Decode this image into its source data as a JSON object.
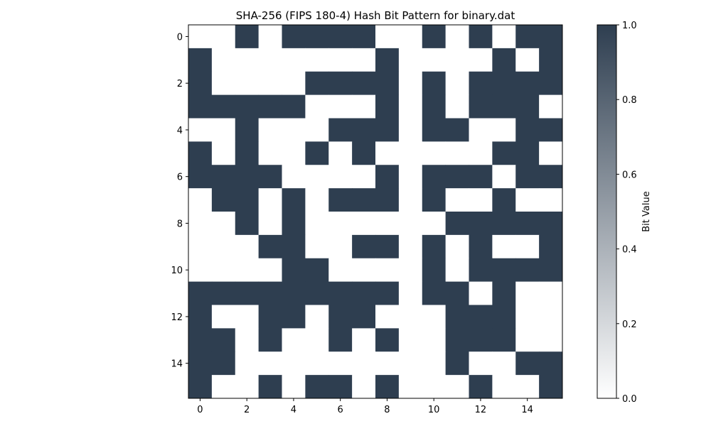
{
  "chart_data": {
    "type": "heatmap",
    "title": "SHA-256 (FIPS 180-4) Hash Bit Pattern for binary.dat",
    "x_ticks": [
      0,
      2,
      4,
      6,
      8,
      10,
      12,
      14
    ],
    "y_ticks": [
      0,
      2,
      4,
      6,
      8,
      10,
      12,
      14
    ],
    "colorbar": {
      "label": "Bit Value",
      "range": [
        0.0,
        1.0
      ],
      "ticks": [
        "0.0",
        "0.2",
        "0.4",
        "0.6",
        "0.8",
        "1.0"
      ],
      "low_color": "#ffffff",
      "high_color": "#2e3e50"
    },
    "grid": [
      [
        0,
        0,
        1,
        0,
        1,
        1,
        1,
        1,
        0,
        0,
        1,
        0,
        1,
        0,
        1,
        1
      ],
      [
        1,
        0,
        0,
        0,
        0,
        0,
        0,
        0,
        1,
        0,
        0,
        0,
        0,
        1,
        0,
        1
      ],
      [
        1,
        0,
        0,
        0,
        0,
        1,
        1,
        1,
        1,
        0,
        1,
        0,
        1,
        1,
        1,
        1
      ],
      [
        1,
        1,
        1,
        1,
        1,
        0,
        0,
        0,
        1,
        0,
        1,
        0,
        1,
        1,
        1,
        0
      ],
      [
        0,
        0,
        1,
        0,
        0,
        0,
        1,
        1,
        1,
        0,
        1,
        1,
        0,
        0,
        1,
        1
      ],
      [
        1,
        0,
        1,
        0,
        0,
        1,
        0,
        1,
        0,
        0,
        0,
        0,
        0,
        1,
        1,
        0
      ],
      [
        1,
        1,
        1,
        1,
        0,
        0,
        0,
        0,
        1,
        0,
        1,
        1,
        1,
        0,
        1,
        1
      ],
      [
        0,
        1,
        1,
        0,
        1,
        0,
        1,
        1,
        1,
        0,
        1,
        0,
        0,
        1,
        0,
        0
      ],
      [
        0,
        0,
        1,
        0,
        1,
        0,
        0,
        0,
        0,
        0,
        0,
        1,
        1,
        1,
        1,
        1
      ],
      [
        0,
        0,
        0,
        1,
        1,
        0,
        0,
        1,
        1,
        0,
        1,
        0,
        1,
        0,
        0,
        1
      ],
      [
        0,
        0,
        0,
        0,
        1,
        1,
        0,
        0,
        0,
        0,
        1,
        0,
        1,
        1,
        1,
        1
      ],
      [
        1,
        1,
        1,
        1,
        1,
        1,
        1,
        1,
        1,
        0,
        1,
        1,
        0,
        1,
        0,
        0
      ],
      [
        1,
        0,
        0,
        1,
        1,
        0,
        1,
        1,
        0,
        0,
        0,
        1,
        1,
        1,
        0,
        0
      ],
      [
        1,
        1,
        0,
        1,
        0,
        0,
        1,
        0,
        1,
        0,
        0,
        1,
        1,
        1,
        0,
        0
      ],
      [
        1,
        1,
        0,
        0,
        0,
        0,
        0,
        0,
        0,
        0,
        0,
        1,
        0,
        0,
        1,
        1
      ],
      [
        1,
        0,
        0,
        1,
        0,
        1,
        1,
        0,
        1,
        0,
        0,
        0,
        1,
        0,
        0,
        1
      ]
    ]
  }
}
